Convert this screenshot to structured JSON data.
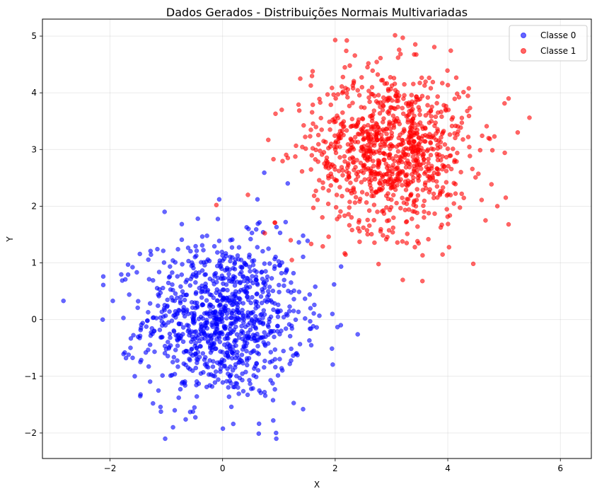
{
  "chart_data": {
    "type": "scatter",
    "title": "Dados Gerados - Distribuições Normais Multivariadas",
    "xlabel": "X",
    "ylabel": "Y",
    "xlim": [
      -3.2,
      6.55
    ],
    "ylim": [
      -2.45,
      5.3
    ],
    "xticks": [
      -2,
      0,
      2,
      4,
      6
    ],
    "yticks": [
      -2,
      -1,
      0,
      1,
      2,
      3,
      4,
      5
    ],
    "grid": true,
    "legend_position": "top-right",
    "series": [
      {
        "name": "Classe 0",
        "color": "#0000ff",
        "n_points": 1000,
        "center": [
          0,
          0
        ],
        "std": [
          0.7,
          0.7
        ],
        "points": [
          [
            -2.12,
            0.76
          ],
          [
            -2.12,
            0.61
          ],
          [
            -2.13,
            0.0
          ],
          [
            -1.95,
            0.33
          ],
          [
            -1.03,
            1.9
          ],
          [
            -1.02,
            -2.1
          ],
          [
            0.74,
            2.59
          ],
          [
            0.62,
            2.12
          ],
          [
            -0.06,
            2.12
          ],
          [
            0.46,
            1.6
          ],
          [
            2.4,
            -0.26
          ],
          [
            1.98,
            0.62
          ],
          [
            0.95,
            -2.0
          ],
          [
            0.19,
            -1.84
          ],
          [
            -0.88,
            -1.9
          ],
          [
            1.43,
            -1.58
          ],
          [
            1.95,
            0.1
          ],
          [
            1.63,
            0.26
          ],
          [
            -1.68,
            0.97
          ],
          [
            -1.67,
            -0.62
          ],
          [
            -1.56,
            -1.0
          ],
          [
            -0.85,
            -1.6
          ],
          [
            0.9,
            -1.78
          ],
          [
            1.57,
            -0.16
          ],
          [
            1.12,
            1.72
          ],
          [
            1.43,
            1.48
          ],
          [
            -1.28,
            1.21
          ],
          [
            0.72,
            1.54
          ],
          [
            -0.44,
            1.78
          ]
        ]
      },
      {
        "name": "Classe 1",
        "color": "#ff0000",
        "n_points": 1000,
        "center": [
          3,
          3
        ],
        "std": [
          0.7,
          0.7
        ],
        "points": [
          [
            5.45,
            3.56
          ],
          [
            5.08,
            3.9
          ],
          [
            5.08,
            1.68
          ],
          [
            5.03,
            2.15
          ],
          [
            3.2,
            4.97
          ],
          [
            2.0,
            4.93
          ],
          [
            3.55,
            0.68
          ],
          [
            3.2,
            0.7
          ],
          [
            2.77,
            0.98
          ],
          [
            1.38,
            4.25
          ],
          [
            1.05,
            3.7
          ],
          [
            0.94,
            3.63
          ],
          [
            0.93,
            1.71
          ],
          [
            0.45,
            2.2
          ],
          [
            -0.11,
            2.02
          ],
          [
            1.21,
            1.4
          ],
          [
            1.23,
            1.05
          ],
          [
            2.3,
            1.58
          ],
          [
            3.27,
            1.35
          ],
          [
            4.67,
            1.75
          ],
          [
            4.88,
            2.0
          ],
          [
            4.69,
            3.41
          ],
          [
            1.6,
            4.38
          ]
        ]
      }
    ]
  }
}
